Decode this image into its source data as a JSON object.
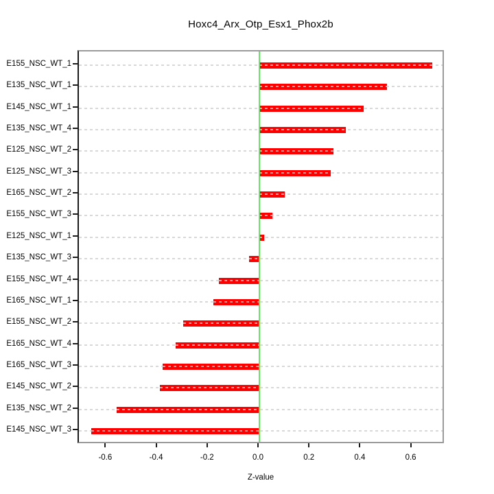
{
  "title": "Hoxc4_Arx_Otp_Esx1_Phox2b",
  "x_axis": {
    "label": "Z-value",
    "tick_labels": [
      "-0.6",
      "-0.4",
      "-0.2",
      "0.0",
      "0.2",
      "0.4",
      "0.6"
    ]
  },
  "chart_data": {
    "type": "bar",
    "orientation": "horizontal",
    "title": "Hoxc4_Arx_Otp_Esx1_Phox2b",
    "xlabel": "Z-value",
    "ylabel": "",
    "categories": [
      "E155_NSC_WT_1",
      "E135_NSC_WT_1",
      "E145_NSC_WT_1",
      "E135_NSC_WT_4",
      "E125_NSC_WT_2",
      "E125_NSC_WT_3",
      "E165_NSC_WT_2",
      "E155_NSC_WT_3",
      "E125_NSC_WT_1",
      "E135_NSC_WT_3",
      "E155_NSC_WT_4",
      "E165_NSC_WT_1",
      "E155_NSC_WT_2",
      "E165_NSC_WT_4",
      "E165_NSC_WT_3",
      "E145_NSC_WT_2",
      "E135_NSC_WT_2",
      "E145_NSC_WT_3"
    ],
    "values": [
      0.68,
      0.5,
      0.41,
      0.34,
      0.29,
      0.28,
      0.1,
      0.05,
      0.02,
      -0.04,
      -0.16,
      -0.18,
      -0.3,
      -0.33,
      -0.38,
      -0.39,
      -0.56,
      -0.66
    ],
    "xticks": [
      -0.6,
      -0.4,
      -0.2,
      0.0,
      0.2,
      0.4,
      0.6
    ],
    "xlim": [
      -0.71,
      0.73
    ],
    "grid": true,
    "legend": false,
    "bar_color": "#ff0000",
    "bar_dash_color": "#ff9a9a",
    "grid_color": "#d8d8d8",
    "zero_line_color": "#63e763"
  }
}
